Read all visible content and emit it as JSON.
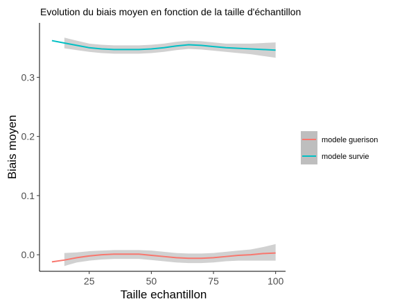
{
  "chart_data": {
    "type": "line",
    "title": "Evolution du biais moyen en fonction de la taille d'échantillon",
    "xlabel": "Taille echantillon",
    "ylabel": "Biais moyen",
    "xlim": [
      5,
      104
    ],
    "ylim": [
      -0.028,
      0.392
    ],
    "x_ticks": [
      25,
      50,
      75,
      100
    ],
    "x_tick_labels": [
      "25",
      "50",
      "75",
      "100"
    ],
    "y_ticks": [
      0.0,
      0.1,
      0.2,
      0.3
    ],
    "y_tick_labels": [
      "0.0",
      "0.1",
      "0.2",
      "0.3"
    ],
    "grid": false,
    "legend_position": "right",
    "series": [
      {
        "name": "modele guerison",
        "color": "#F8766D",
        "x": [
          10,
          15,
          20,
          25,
          30,
          35,
          40,
          45,
          50,
          55,
          60,
          65,
          70,
          75,
          80,
          85,
          90,
          95,
          100
        ],
        "y": [
          -0.012,
          -0.009,
          -0.005,
          -0.002,
          0.0,
          0.001,
          0.001,
          0.001,
          -0.001,
          -0.003,
          -0.005,
          -0.006,
          -0.006,
          -0.005,
          -0.003,
          -0.001,
          0.0,
          0.002,
          0.003
        ],
        "band_lower": [
          null,
          -0.019,
          -0.013,
          -0.01,
          -0.008,
          -0.007,
          -0.007,
          -0.007,
          -0.009,
          -0.011,
          -0.013,
          -0.014,
          -0.014,
          -0.013,
          -0.011,
          -0.01,
          -0.01,
          -0.01,
          -0.01
        ],
        "band_upper": [
          null,
          0.003,
          0.004,
          0.006,
          0.007,
          0.008,
          0.008,
          0.008,
          0.007,
          0.005,
          0.003,
          0.002,
          0.002,
          0.003,
          0.005,
          0.007,
          0.009,
          0.013,
          0.018
        ]
      },
      {
        "name": "modele survie",
        "color": "#00BFC4",
        "x": [
          10,
          15,
          20,
          25,
          30,
          35,
          40,
          45,
          50,
          55,
          60,
          65,
          70,
          75,
          80,
          85,
          90,
          95,
          100
        ],
        "y": [
          0.362,
          0.358,
          0.354,
          0.35,
          0.348,
          0.347,
          0.347,
          0.347,
          0.348,
          0.35,
          0.353,
          0.355,
          0.354,
          0.352,
          0.35,
          0.349,
          0.348,
          0.347,
          0.346
        ],
        "band_lower": [
          null,
          0.349,
          0.346,
          0.343,
          0.341,
          0.34,
          0.34,
          0.34,
          0.341,
          0.343,
          0.346,
          0.348,
          0.347,
          0.345,
          0.343,
          0.341,
          0.339,
          0.336,
          0.333
        ],
        "band_upper": [
          null,
          0.367,
          0.362,
          0.357,
          0.355,
          0.354,
          0.354,
          0.354,
          0.355,
          0.357,
          0.36,
          0.362,
          0.361,
          0.359,
          0.357,
          0.357,
          0.357,
          0.358,
          0.359
        ]
      }
    ],
    "legend_band_color": "#bebebe"
  }
}
